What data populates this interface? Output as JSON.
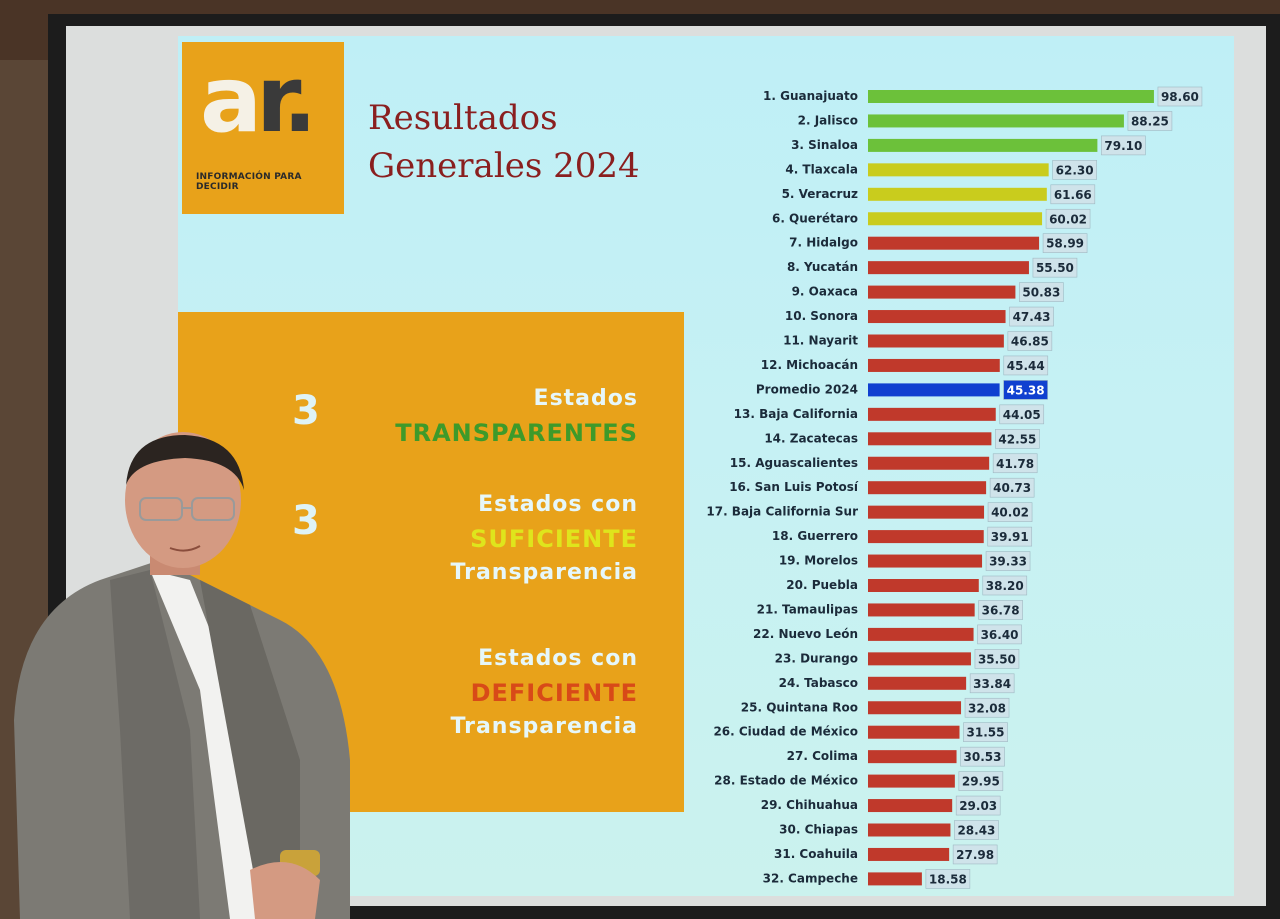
{
  "slide": {
    "logo": {
      "mark_a": "a",
      "mark_r": "r.",
      "tagline": "INFORMACIÓN PARA DECIDIR"
    },
    "title_line1": "Resultados",
    "title_line2": "Generales 2024",
    "summary": [
      {
        "number": "3",
        "line1": "Estados",
        "highlight": "TRANSPARENTES",
        "line3": "",
        "color": "#4aa830"
      },
      {
        "number": "3",
        "line1": "Estados con",
        "highlight": "SUFICIENTE",
        "line3": "Transparencia",
        "color": "#d8e01a"
      },
      {
        "number": "",
        "line1": "Estados con",
        "highlight": "DEFICIENTE",
        "line3": "Transparencia",
        "color": "#d8501a"
      }
    ]
  },
  "colors": {
    "green": "#6cc13a",
    "yellow": "#c9cc1d",
    "red": "#c0392b",
    "blue": "#1040d0",
    "value_box": "#cfe3ea",
    "accent_orange": "#e8a21a"
  },
  "chart_data": {
    "type": "bar",
    "orientation": "horizontal",
    "xlim": [
      0,
      100
    ],
    "categories": [
      "1. Guanajuato",
      "2. Jalisco",
      "3. Sinaloa",
      "4. Tlaxcala",
      "5. Veracruz",
      "6. Querétaro",
      "7. Hidalgo",
      "8. Yucatán",
      "9. Oaxaca",
      "10. Sonora",
      "11. Nayarit",
      "12. Michoacán",
      "Promedio 2024",
      "13. Baja California",
      "14. Zacatecas",
      "15. Aguascalientes",
      "16. San Luis Potosí",
      "17. Baja California Sur",
      "18. Guerrero",
      "19. Morelos",
      "20. Puebla",
      "21. Tamaulipas",
      "22. Nuevo León",
      "23. Durango",
      "24. Tabasco",
      "25. Quintana Roo",
      "26. Ciudad de México",
      "27. Colima",
      "28. Estado de México",
      "29. Chihuahua",
      "30. Chiapas",
      "31. Coahuila",
      "32. Campeche"
    ],
    "values": [
      98.6,
      88.25,
      79.1,
      62.3,
      61.66,
      60.02,
      58.99,
      55.5,
      50.83,
      47.43,
      46.85,
      45.44,
      45.38,
      44.05,
      42.55,
      41.78,
      40.73,
      40.02,
      39.91,
      39.33,
      38.2,
      36.78,
      36.4,
      35.5,
      33.84,
      32.08,
      31.55,
      30.53,
      29.95,
      29.03,
      28.43,
      27.98,
      18.58
    ],
    "labels": [
      "98.60",
      "88.25",
      "79.10",
      "62.30",
      "61.66",
      "60.02",
      "58.99",
      "55.50",
      "50.83",
      "47.43",
      "46.85",
      "45.44",
      "45.38",
      "44.05",
      "42.55",
      "41.78",
      "40.73",
      "40.02",
      "39.91",
      "39.33",
      "38.20",
      "36.78",
      "36.40",
      "35.50",
      "33.84",
      "32.08",
      "31.55",
      "30.53",
      "29.95",
      "29.03",
      "28.43",
      "27.98",
      "18.58"
    ],
    "bar_colors": [
      "green",
      "green",
      "green",
      "yellow",
      "yellow",
      "yellow",
      "red",
      "red",
      "red",
      "red",
      "red",
      "red",
      "blue",
      "red",
      "red",
      "red",
      "red",
      "red",
      "red",
      "red",
      "red",
      "red",
      "red",
      "red",
      "red",
      "red",
      "red",
      "red",
      "red",
      "red",
      "red",
      "red",
      "red"
    ]
  }
}
